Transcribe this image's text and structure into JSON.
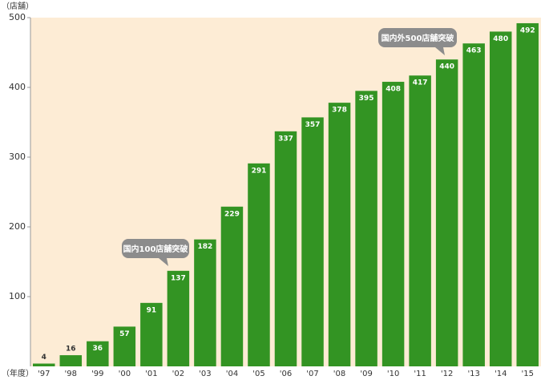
{
  "chart_data": {
    "type": "bar",
    "y_unit_label": "（店舗）",
    "x_unit_label": "（年度）",
    "categories": [
      "'97",
      "'98",
      "'99",
      "'00",
      "'01",
      "'02",
      "'03",
      "'04",
      "'05",
      "'06",
      "'07",
      "'08",
      "'09",
      "'10",
      "'11",
      "'12",
      "'13",
      "'14",
      "'15"
    ],
    "values": [
      4,
      16,
      36,
      57,
      91,
      137,
      182,
      229,
      291,
      337,
      357,
      378,
      395,
      408,
      417,
      440,
      463,
      480,
      492
    ],
    "color": "#339423",
    "background": "#fdecd5",
    "ylim": [
      0,
      500
    ],
    "yticks": [
      100,
      200,
      300,
      400,
      500
    ],
    "annotations": [
      "国内100店舗突破",
      "国内外500店舗突破"
    ]
  }
}
